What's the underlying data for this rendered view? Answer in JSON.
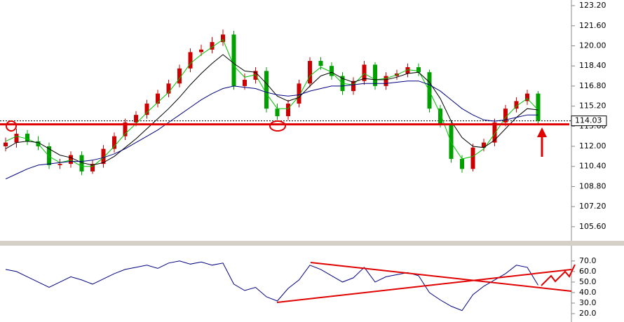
{
  "chart_data": [
    {
      "type": "candlestick",
      "ylim": [
        104.7,
        123.65
      ],
      "yticks": [
        {
          "value": 105.6,
          "label": "105.60"
        },
        {
          "value": 107.2,
          "label": "107.20"
        },
        {
          "value": 108.8,
          "label": "108.80"
        },
        {
          "value": 110.4,
          "label": "110.40"
        },
        {
          "value": 112.0,
          "label": "112.00"
        },
        {
          "value": 113.6,
          "label": "113.60"
        },
        {
          "value": 115.2,
          "label": "115.20"
        },
        {
          "value": 116.8,
          "label": "116.80"
        },
        {
          "value": 118.4,
          "label": "118.40"
        },
        {
          "value": 120.0,
          "label": "120.00"
        },
        {
          "value": 121.6,
          "label": "121.60"
        },
        {
          "value": 123.2,
          "label": "123.20"
        }
      ],
      "up_color": "#cc0000",
      "down_color": "#00a000",
      "open": [
        112.0,
        112.3,
        113.0,
        112.4,
        112.0,
        110.5,
        110.6,
        111.3,
        110.0,
        110.6,
        111.8,
        112.8,
        113.9,
        114.5,
        115.4,
        116.2,
        117.0,
        118.2,
        119.5,
        119.7,
        120.3,
        120.9,
        116.8,
        117.3,
        118.0,
        115.0,
        114.4,
        115.4,
        117.0,
        118.8,
        118.4,
        117.6,
        116.4,
        117.2,
        118.5,
        116.8,
        117.6,
        117.8,
        118.3,
        117.9,
        115.0,
        113.8,
        111.0,
        110.2,
        111.9,
        112.3,
        113.9,
        115.0,
        115.6,
        116.2
      ],
      "high": [
        112.7,
        113.4,
        113.3,
        112.8,
        112.3,
        111.0,
        111.6,
        111.6,
        110.9,
        112.1,
        113.1,
        114.2,
        114.8,
        115.7,
        116.5,
        117.3,
        118.5,
        119.8,
        120.1,
        120.7,
        121.3,
        121.2,
        117.8,
        118.3,
        118.3,
        115.4,
        115.7,
        117.3,
        119.1,
        119.1,
        118.7,
        117.9,
        117.5,
        118.8,
        118.7,
        117.9,
        118.1,
        118.6,
        118.6,
        118.1,
        115.3,
        114.1,
        111.3,
        112.2,
        112.6,
        114.2,
        115.3,
        115.9,
        116.5,
        116.4
      ],
      "low": [
        111.6,
        111.9,
        112.1,
        111.7,
        110.2,
        110.2,
        110.3,
        109.7,
        109.8,
        110.3,
        111.5,
        112.5,
        113.6,
        114.2,
        115.1,
        115.9,
        116.7,
        117.9,
        119.2,
        119.4,
        120.0,
        116.5,
        116.5,
        117.0,
        114.7,
        114.1,
        114.1,
        115.1,
        116.7,
        118.1,
        117.3,
        116.1,
        116.1,
        116.9,
        116.5,
        116.5,
        117.3,
        117.5,
        117.6,
        114.7,
        113.5,
        110.7,
        109.9,
        110.0,
        111.6,
        112.0,
        113.6,
        114.7,
        115.3,
        113.8
      ],
      "close": [
        112.3,
        113.0,
        112.4,
        112.0,
        110.5,
        110.6,
        111.3,
        110.0,
        110.6,
        111.8,
        112.8,
        113.9,
        114.5,
        115.4,
        116.2,
        117.0,
        118.2,
        119.5,
        119.7,
        120.3,
        120.9,
        116.8,
        117.3,
        118.0,
        115.0,
        114.4,
        115.4,
        117.0,
        118.8,
        118.4,
        117.6,
        116.4,
        117.2,
        118.5,
        116.8,
        117.6,
        117.8,
        118.3,
        117.9,
        115.0,
        113.8,
        111.0,
        110.2,
        111.9,
        112.3,
        113.9,
        115.0,
        115.6,
        116.2,
        114.03
      ],
      "series": [
        {
          "color": "#00c000",
          "values": [
            112.4,
            112.8,
            112.6,
            112.2,
            111.2,
            110.7,
            110.9,
            110.4,
            110.4,
            111.1,
            112.0,
            113.0,
            113.8,
            114.7,
            115.5,
            116.3,
            117.4,
            118.6,
            119.3,
            119.9,
            120.5,
            118.4,
            117.5,
            117.7,
            116.2,
            115.0,
            115.0,
            116.0,
            117.6,
            118.3,
            117.9,
            117.0,
            116.9,
            117.8,
            117.3,
            117.4,
            117.7,
            118.1,
            118.0,
            116.4,
            114.6,
            112.3,
            111.0,
            111.2,
            111.8,
            113.0,
            114.3,
            115.2,
            115.8,
            114.9
          ]
        },
        {
          "color": "#000000",
          "values": [
            111.8,
            112.3,
            112.4,
            112.3,
            111.8,
            111.3,
            111.1,
            110.7,
            110.5,
            110.7,
            111.2,
            111.9,
            112.6,
            113.4,
            114.2,
            115.0,
            115.9,
            116.9,
            117.8,
            118.6,
            119.3,
            118.6,
            118.0,
            117.9,
            117.0,
            116.0,
            115.6,
            115.9,
            116.8,
            117.6,
            117.9,
            117.4,
            117.1,
            117.4,
            117.3,
            117.3,
            117.5,
            117.8,
            117.9,
            117.1,
            115.8,
            114.0,
            112.7,
            112.0,
            111.9,
            112.5,
            113.4,
            114.3,
            115.0,
            114.9
          ]
        },
        {
          "color": "#000080",
          "values": [
            109.4,
            109.8,
            110.2,
            110.5,
            110.6,
            110.7,
            110.8,
            110.8,
            110.9,
            111.1,
            111.4,
            111.8,
            112.3,
            112.8,
            113.3,
            113.9,
            114.5,
            115.1,
            115.7,
            116.2,
            116.6,
            116.8,
            116.7,
            116.6,
            116.3,
            116.1,
            116.0,
            116.1,
            116.4,
            116.6,
            116.8,
            116.8,
            116.9,
            117.0,
            117.0,
            117.0,
            117.1,
            117.2,
            117.2,
            116.9,
            116.4,
            115.7,
            115.0,
            114.5,
            114.1,
            114.0,
            114.1,
            114.3,
            114.5,
            114.5
          ]
        }
      ],
      "last_price": {
        "value": 114.03,
        "label": "114.03"
      },
      "support_level": 113.75
    },
    {
      "type": "line",
      "ylim": [
        15.4,
        84.5
      ],
      "yticks": [
        {
          "value": 20,
          "label": "20.0"
        },
        {
          "value": 30,
          "label": "30.0"
        },
        {
          "value": 40,
          "label": "40.0"
        },
        {
          "value": 50,
          "label": "50.0"
        },
        {
          "value": 60,
          "label": "60.0"
        },
        {
          "value": 70,
          "label": "70.0"
        }
      ],
      "series": [
        {
          "color": "#000080",
          "values": [
            62,
            60,
            55,
            50,
            45,
            50,
            55,
            52,
            48,
            53,
            58,
            62,
            64,
            66,
            63,
            68,
            70,
            67,
            69,
            66,
            68,
            48,
            42,
            45,
            36,
            32,
            44,
            52,
            66,
            62,
            56,
            50,
            54,
            64,
            50,
            55,
            57,
            59,
            56,
            40,
            33,
            27,
            23,
            38,
            46,
            52,
            58,
            66,
            64,
            47
          ]
        }
      ]
    }
  ]
}
